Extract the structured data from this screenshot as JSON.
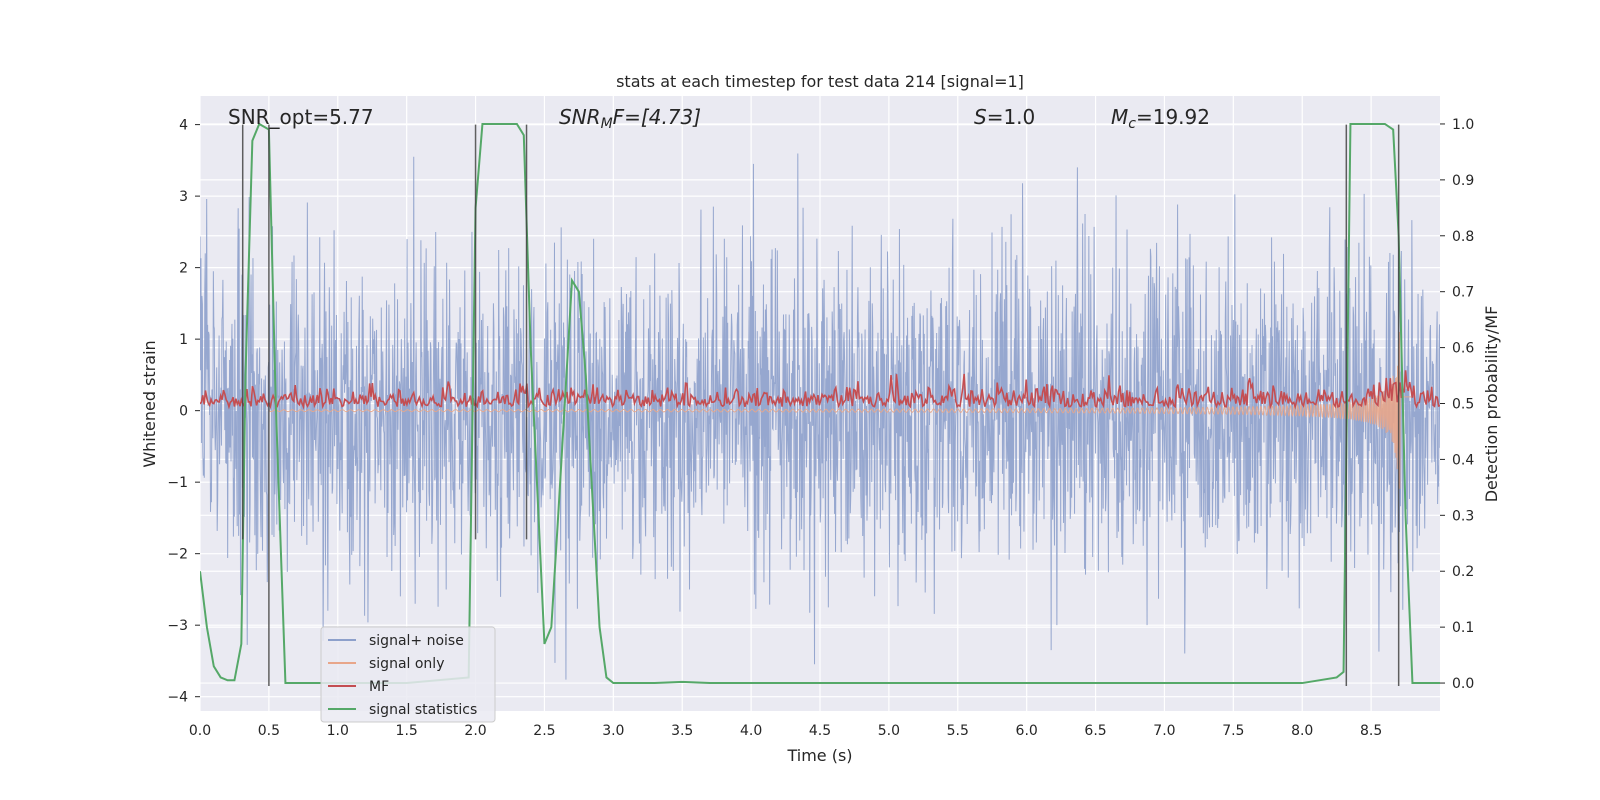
{
  "chart_data": {
    "type": "line",
    "title": "stats at each timestep for test data 214 [signal=1]",
    "xlabel": "Time (s)",
    "ylabel": "Whitened strain",
    "y2label": "Detection probability/MF",
    "xlim": [
      0,
      9
    ],
    "ylim": [
      -4.2,
      4.4
    ],
    "y2lim": [
      -0.05,
      1.05
    ],
    "xticks": [
      0.0,
      0.5,
      1.0,
      1.5,
      2.0,
      2.5,
      3.0,
      3.5,
      4.0,
      4.5,
      5.0,
      5.5,
      6.0,
      6.5,
      7.0,
      7.5,
      8.0,
      8.5
    ],
    "xtick_labels": [
      "0.0",
      "0.5",
      "1.0",
      "1.5",
      "2.0",
      "2.5",
      "3.0",
      "3.5",
      "4.0",
      "4.5",
      "5.0",
      "5.5",
      "6.0",
      "6.5",
      "7.0",
      "7.5",
      "8.0",
      "8.5"
    ],
    "yticks": [
      4,
      3,
      2,
      1,
      0,
      -1,
      -2,
      -3,
      -4
    ],
    "ytick_labels": [
      "4",
      "3",
      "2",
      "1",
      "0",
      "−1",
      "−2",
      "−3",
      "−4"
    ],
    "y2ticks": [
      1.0,
      0.9,
      0.8,
      0.7,
      0.6,
      0.5,
      0.4,
      0.3,
      0.2,
      0.1,
      0.0
    ],
    "y2tick_labels": [
      "1.0",
      "0.9",
      "0.8",
      "0.7",
      "0.6",
      "0.5",
      "0.4",
      "0.3",
      "0.2",
      "0.1",
      "0.0"
    ],
    "grid": true,
    "legend_position": "lower-left",
    "annotations": {
      "snr_opt": "SNR_opt=5.77",
      "snr_mf_sym": "SNR",
      "snr_mf_sub": "M",
      "snr_mf_rest": "F=[4.73]",
      "s_sym": "S",
      "s_rest": "=1.0",
      "mc_sym": "M",
      "mc_sub": "c",
      "mc_rest": "=19.92"
    },
    "series": [
      {
        "name": "signal+ noise",
        "color": "#8da0cb",
        "style": "dense noise, approx amplitude ±3",
        "amplitude_rms": 1.0
      },
      {
        "name": "signal only",
        "color": "#e8a68a",
        "style": "chirp growing toward 8.7 s"
      },
      {
        "name": "MF",
        "color": "#c44e52",
        "axis": "y2",
        "baseline": 0.5,
        "spread": 0.02
      },
      {
        "name": "signal statistics",
        "color": "#55a868",
        "axis": "y2",
        "x": [
          0.0,
          0.05,
          0.1,
          0.15,
          0.2,
          0.25,
          0.3,
          0.33,
          0.38,
          0.43,
          0.5,
          0.55,
          0.62,
          0.7,
          1.0,
          1.5,
          1.95,
          2.0,
          2.05,
          2.1,
          2.3,
          2.35,
          2.4,
          2.5,
          2.55,
          2.6,
          2.7,
          2.75,
          2.8,
          2.9,
          2.95,
          3.0,
          3.3,
          3.5,
          3.7,
          4.0,
          5.0,
          6.0,
          7.0,
          8.0,
          8.25,
          8.3,
          8.35,
          8.6,
          8.66,
          8.7,
          8.75,
          8.8,
          8.9,
          9.0
        ],
        "y": [
          0.2,
          0.1,
          0.03,
          0.01,
          0.005,
          0.005,
          0.07,
          0.55,
          0.97,
          1.0,
          0.99,
          0.5,
          0.0,
          0.0,
          0.0,
          0.0,
          0.01,
          0.85,
          1.0,
          1.0,
          1.0,
          0.98,
          0.6,
          0.07,
          0.1,
          0.3,
          0.72,
          0.7,
          0.55,
          0.1,
          0.01,
          0.0,
          0.0,
          0.002,
          0.0,
          0.0,
          0.0,
          0.0,
          0.0,
          0.0,
          0.01,
          0.02,
          1.0,
          1.0,
          0.99,
          0.8,
          0.3,
          0.0,
          0.0,
          0.0
        ]
      }
    ],
    "vertical_markers": [
      {
        "x": 0.31,
        "y_bottom": -1.8
      },
      {
        "x": 0.5,
        "y_bottom": -3.85
      },
      {
        "x": 2.0,
        "y_bottom": -1.8
      },
      {
        "x": 2.37,
        "y_bottom": -1.8
      },
      {
        "x": 8.32,
        "y_bottom": -3.85
      },
      {
        "x": 8.7,
        "y_bottom": -3.85
      }
    ]
  }
}
